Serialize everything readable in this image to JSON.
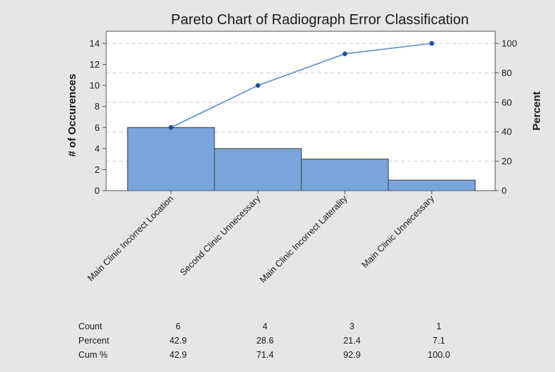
{
  "chart_data": {
    "type": "bar",
    "title": "Pareto Chart of Radiograph Error Classification",
    "ylabel_left": "# of Occurences",
    "ylabel_right": "Percent",
    "categories": [
      "Main Clinic Incorrect Location",
      "Second Clinic Unnecessary",
      "Main Clinic Incorrect Laterality",
      "Main Clinic Unnecessary"
    ],
    "series": [
      {
        "name": "Count",
        "type": "bar",
        "values": [
          6,
          4,
          3,
          1
        ]
      },
      {
        "name": "Cum %",
        "type": "line",
        "values": [
          42.9,
          71.4,
          92.9,
          100.0
        ]
      }
    ],
    "ylim_left": [
      0,
      14
    ],
    "yticks_left": [
      "0",
      "2",
      "4",
      "6",
      "8",
      "10",
      "12",
      "14"
    ],
    "ylim_right": [
      0,
      100
    ],
    "yticks_right": [
      "0",
      "20",
      "40",
      "60",
      "80",
      "100"
    ],
    "grid": true,
    "table": {
      "row_labels": [
        "Count",
        "Percent",
        "Cum %"
      ],
      "rows": [
        [
          "6",
          "4",
          "3",
          "1"
        ],
        [
          "42.9",
          "28.6",
          "21.4",
          "7.1"
        ],
        [
          "42.9",
          "71.4",
          "92.9",
          "100.0"
        ]
      ]
    },
    "colors": {
      "bar": "#7aa5dc",
      "bar_edge": "#3b3b3b",
      "line": "#5b8fd0",
      "marker": "#1f4e9c",
      "grid": "#cfcfcf"
    }
  }
}
